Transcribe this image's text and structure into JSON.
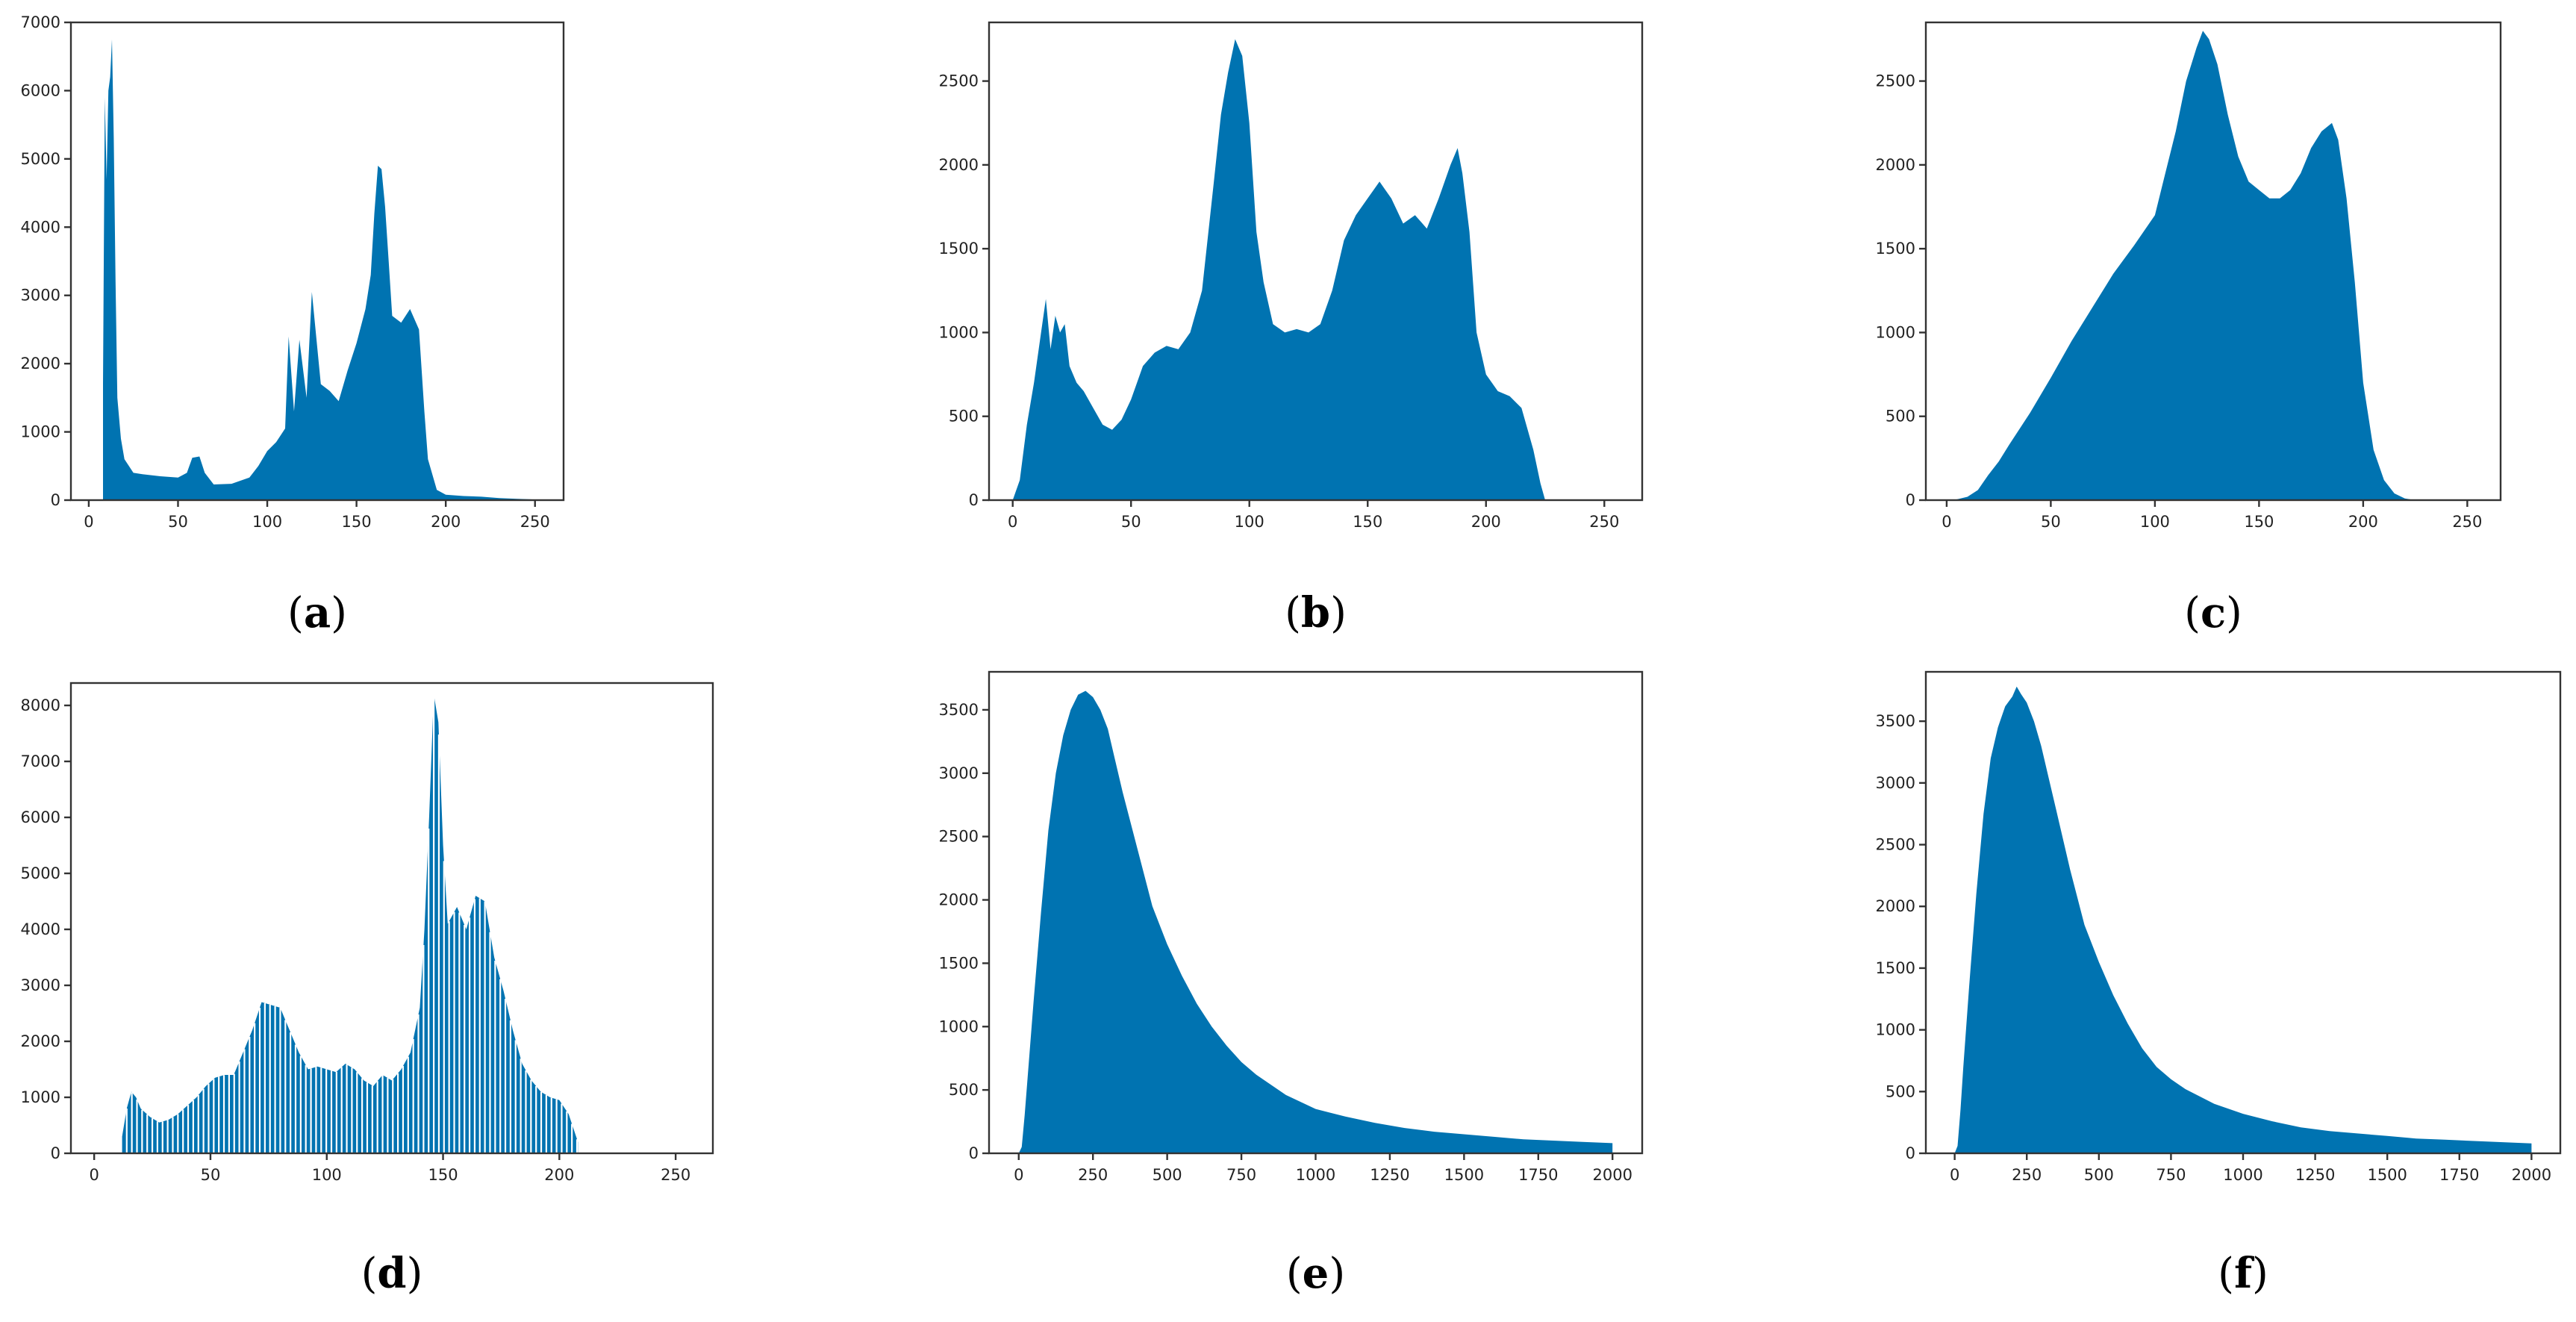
{
  "chart_data": [
    {
      "type": "histogram",
      "caption": "(a)",
      "caption_letter": "a",
      "color": "#0073b1",
      "xlim": [
        -10,
        266
      ],
      "ylim": [
        0,
        7000
      ],
      "xticks": [
        0,
        50,
        100,
        150,
        200,
        250
      ],
      "yticks": [
        0,
        1000,
        2000,
        3000,
        4000,
        5000,
        6000,
        7000
      ],
      "x": [
        8,
        9,
        10,
        11,
        12,
        13,
        14,
        15,
        16,
        18,
        20,
        25,
        30,
        40,
        50,
        55,
        58,
        62,
        65,
        70,
        80,
        90,
        95,
        100,
        105,
        110,
        112,
        115,
        118,
        122,
        125,
        130,
        135,
        140,
        145,
        150,
        155,
        158,
        160,
        162,
        164,
        166,
        168,
        170,
        175,
        180,
        185,
        188,
        190,
        195,
        200,
        210,
        220,
        230,
        240,
        250,
        255
      ],
      "y": [
        1700,
        5900,
        4700,
        6000,
        6200,
        6750,
        5300,
        3200,
        1500,
        900,
        600,
        400,
        380,
        350,
        330,
        400,
        620,
        640,
        400,
        230,
        240,
        330,
        500,
        720,
        850,
        1050,
        2400,
        1300,
        2350,
        1500,
        3050,
        1700,
        1600,
        1450,
        1900,
        2300,
        2800,
        3300,
        4200,
        4900,
        4850,
        4300,
        3500,
        2700,
        2600,
        2800,
        2500,
        1300,
        600,
        150,
        80,
        60,
        50,
        30,
        20,
        10,
        0
      ]
    },
    {
      "type": "histogram",
      "caption": "(b)",
      "caption_letter": "b",
      "color": "#0073b1",
      "xlim": [
        -10,
        266
      ],
      "ylim": [
        0,
        2850
      ],
      "xticks": [
        0,
        50,
        100,
        150,
        200,
        250
      ],
      "yticks": [
        0,
        500,
        1000,
        1500,
        2000,
        2500
      ],
      "x": [
        0,
        3,
        6,
        9,
        12,
        14,
        16,
        18,
        20,
        22,
        24,
        27,
        30,
        34,
        38,
        42,
        46,
        50,
        55,
        60,
        65,
        70,
        75,
        80,
        85,
        88,
        91,
        94,
        97,
        100,
        103,
        106,
        110,
        115,
        120,
        125,
        130,
        135,
        140,
        145,
        150,
        155,
        160,
        165,
        170,
        175,
        180,
        185,
        188,
        190,
        193,
        196,
        200,
        205,
        210,
        215,
        220,
        223,
        225
      ],
      "y": [
        0,
        120,
        450,
        700,
        1000,
        1200,
        900,
        1100,
        1000,
        1050,
        800,
        700,
        650,
        550,
        450,
        420,
        480,
        600,
        800,
        880,
        920,
        900,
        1000,
        1250,
        1900,
        2300,
        2550,
        2750,
        2650,
        2250,
        1600,
        1300,
        1050,
        1000,
        1020,
        1000,
        1050,
        1250,
        1550,
        1700,
        1800,
        1900,
        1800,
        1650,
        1700,
        1620,
        1800,
        2000,
        2100,
        1950,
        1600,
        1000,
        750,
        650,
        620,
        550,
        300,
        100,
        0
      ]
    },
    {
      "type": "histogram",
      "caption": "(c)",
      "caption_letter": "c",
      "color": "#0073b1",
      "xlim": [
        -10,
        266
      ],
      "ylim": [
        0,
        2850
      ],
      "xticks": [
        0,
        50,
        100,
        150,
        200,
        250
      ],
      "yticks": [
        0,
        500,
        1000,
        1500,
        2000,
        2500
      ],
      "x": [
        0,
        5,
        10,
        15,
        20,
        25,
        30,
        40,
        50,
        60,
        70,
        80,
        90,
        100,
        105,
        110,
        115,
        120,
        123,
        126,
        130,
        135,
        140,
        145,
        150,
        155,
        160,
        165,
        170,
        175,
        180,
        185,
        188,
        192,
        196,
        200,
        205,
        210,
        215,
        220,
        225
      ],
      "y": [
        0,
        5,
        20,
        60,
        150,
        230,
        330,
        520,
        730,
        950,
        1150,
        1350,
        1520,
        1700,
        1950,
        2200,
        2500,
        2700,
        2800,
        2750,
        2600,
        2300,
        2050,
        1900,
        1850,
        1800,
        1800,
        1850,
        1950,
        2100,
        2200,
        2250,
        2150,
        1800,
        1300,
        700,
        300,
        120,
        40,
        10,
        0
      ]
    },
    {
      "type": "histogram",
      "caption": "(d)",
      "caption_letter": "d",
      "color": "#0073b1",
      "xlim": [
        -10,
        266
      ],
      "ylim": [
        0,
        8400
      ],
      "xticks": [
        0,
        50,
        100,
        150,
        200,
        250
      ],
      "yticks": [
        0,
        1000,
        2000,
        3000,
        4000,
        5000,
        6000,
        7000,
        8000
      ],
      "x": [
        12,
        14,
        16,
        18,
        20,
        24,
        28,
        32,
        36,
        40,
        44,
        48,
        52,
        56,
        60,
        64,
        68,
        72,
        76,
        80,
        84,
        88,
        92,
        96,
        100,
        104,
        108,
        112,
        116,
        120,
        124,
        128,
        132,
        136,
        140,
        142,
        144,
        146,
        148,
        150,
        152,
        156,
        160,
        164,
        168,
        172,
        176,
        180,
        184,
        188,
        192,
        196,
        200,
        204,
        208
      ],
      "y": [
        300,
        800,
        1100,
        1000,
        800,
        650,
        550,
        600,
        700,
        850,
        1000,
        1200,
        1350,
        1400,
        1400,
        1800,
        2200,
        2700,
        2650,
        2600,
        2200,
        1800,
        1500,
        1550,
        1500,
        1450,
        1600,
        1500,
        1300,
        1200,
        1400,
        1300,
        1500,
        1800,
        2600,
        4000,
        6000,
        8200,
        7700,
        5500,
        4100,
        4400,
        4000,
        4600,
        4500,
        3500,
        2900,
        2200,
        1600,
        1300,
        1100,
        1000,
        950,
        700,
        200
      ]
    },
    {
      "type": "histogram",
      "caption": "(e)",
      "caption_letter": "e",
      "color": "#0073b1",
      "xlim": [
        -100,
        2100
      ],
      "ylim": [
        0,
        3800
      ],
      "xticks": [
        0,
        250,
        500,
        750,
        1000,
        1250,
        1500,
        1750,
        2000
      ],
      "xticklabels": [
        "0",
        "250",
        "500",
        "750",
        "1000",
        "1250",
        "1500",
        "1750",
        "2000"
      ],
      "yticks": [
        0,
        500,
        1000,
        1500,
        2000,
        2500,
        3000,
        3500
      ],
      "x": [
        0,
        10,
        20,
        30,
        50,
        75,
        100,
        125,
        150,
        175,
        200,
        225,
        250,
        275,
        300,
        325,
        350,
        400,
        450,
        500,
        550,
        600,
        650,
        700,
        750,
        800,
        900,
        1000,
        1100,
        1200,
        1300,
        1400,
        1500,
        1600,
        1700,
        1800,
        1900,
        2000
      ],
      "y": [
        0,
        50,
        300,
        600,
        1200,
        1900,
        2550,
        3000,
        3300,
        3500,
        3620,
        3650,
        3600,
        3500,
        3350,
        3100,
        2850,
        2400,
        1950,
        1650,
        1400,
        1180,
        1000,
        850,
        720,
        620,
        460,
        350,
        290,
        240,
        200,
        170,
        150,
        130,
        110,
        100,
        90,
        80
      ]
    },
    {
      "type": "histogram",
      "caption": "(f)",
      "caption_letter": "f",
      "color": "#0073b1",
      "xlim": [
        -100,
        2100
      ],
      "ylim": [
        0,
        3900
      ],
      "xticks": [
        0,
        250,
        500,
        750,
        1000,
        1250,
        1500,
        1750,
        2000
      ],
      "xticklabels": [
        "0",
        "250",
        "500",
        "750",
        "1000",
        "1250",
        "1500",
        "1750",
        "2000"
      ],
      "yticks": [
        0,
        500,
        1000,
        1500,
        2000,
        2500,
        3000,
        3500
      ],
      "x": [
        0,
        10,
        20,
        30,
        50,
        75,
        100,
        125,
        150,
        175,
        200,
        215,
        230,
        250,
        275,
        300,
        325,
        350,
        400,
        450,
        500,
        550,
        600,
        650,
        700,
        750,
        800,
        900,
        1000,
        1100,
        1200,
        1300,
        1400,
        1500,
        1600,
        1700,
        1800,
        1900,
        2000
      ],
      "y": [
        0,
        60,
        350,
        700,
        1350,
        2100,
        2750,
        3200,
        3450,
        3620,
        3700,
        3780,
        3720,
        3650,
        3500,
        3300,
        3050,
        2800,
        2300,
        1850,
        1550,
        1280,
        1050,
        850,
        700,
        600,
        520,
        400,
        320,
        260,
        210,
        180,
        160,
        140,
        120,
        110,
        100,
        90,
        80
      ]
    }
  ]
}
